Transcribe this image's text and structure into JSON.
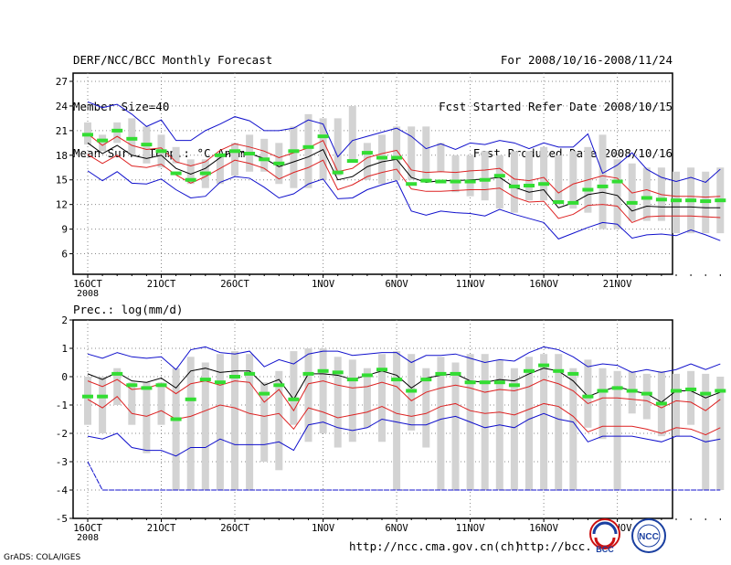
{
  "header": {
    "left": [
      "DERF/NCC/BCC Monthly Forecast",
      "Member Size=40",
      "Mean Surf. Temp.: °C Anom."
    ],
    "right": [
      "For 2008/10/16-2008/11/24",
      "Fcst Started Refer Date 2008/10/15",
      "Fcst Produced Date 2008/10/16"
    ]
  },
  "footer": {
    "url1": "http://ncc.cma.gov.cn(ch)",
    "url2": "http://bcc.",
    "grads": "GrADS: COLA/IGES",
    "logo1": "BCC",
    "logo2": "NCC"
  },
  "colors": {
    "box": "#d3d3d3",
    "median": "#33dd33",
    "mean": "#000000",
    "inner": "#dd2222",
    "outer": "#1010cc",
    "grid": "#888888"
  },
  "chart_data": [
    {
      "type": "box",
      "title": "Mean Surf. Temp.: °C Anom.",
      "ylim": [
        3.5,
        28
      ],
      "yticks": [
        6,
        9,
        12,
        15,
        18,
        21,
        24,
        27
      ],
      "xticks": [
        {
          "day": 1,
          "label": "16OCT"
        },
        {
          "day": 6,
          "label": "21OCT"
        },
        {
          "day": 11,
          "label": "26OCT"
        },
        {
          "day": 17,
          "label": "1NOV"
        },
        {
          "day": 22,
          "label": "6NOV"
        },
        {
          "day": 27,
          "label": "11NOV"
        },
        {
          "day": 32,
          "label": "16NOV"
        },
        {
          "day": 37,
          "label": "21NOV"
        }
      ],
      "year_label": "2008",
      "box_low": [
        19.3,
        18.5,
        19.5,
        18,
        17,
        16.5,
        17,
        14.5,
        14,
        14.5,
        15.5,
        16,
        16,
        14.5,
        14,
        14,
        15,
        15.5,
        17.5,
        15,
        14.5,
        15,
        15,
        15,
        16,
        13.5,
        13,
        12.5,
        11.5,
        11,
        12.5,
        12.5,
        12,
        11.5,
        11,
        9,
        9,
        10,
        10,
        10,
        8.5,
        8.5,
        8.5,
        8.5
      ],
      "box_high": [
        22,
        20.5,
        22,
        22.5,
        21.5,
        20.5,
        19,
        17.5,
        17.5,
        18,
        19.5,
        20.5,
        20,
        19.5,
        21.5,
        23,
        22.5,
        22.5,
        24,
        19.5,
        20.5,
        21.5,
        21.5,
        21.5,
        19.5,
        18,
        18,
        18.5,
        18,
        18.5,
        18.5,
        19,
        18,
        18.5,
        19,
        20.5,
        17.5,
        17,
        16.5,
        16.5,
        16,
        16.5,
        16,
        16.5
      ],
      "median": [
        20.5,
        19.8,
        21,
        20,
        19.3,
        18.5,
        15.8,
        15,
        15.8,
        18,
        18.5,
        18.2,
        17.5,
        17,
        18.5,
        19,
        20.3,
        15.9,
        17.3,
        18.3,
        17.7,
        17.7,
        14.5,
        14.9,
        14.8,
        14.8,
        14.8,
        15,
        15.5,
        14.2,
        14.3,
        14.5,
        12.3,
        12.2,
        13.8,
        14.2,
        14.8,
        12.2,
        12.8,
        12.6,
        12.5,
        12.5,
        12.4,
        12.5
      ],
      "outer_high": [
        24.5,
        23.8,
        24.2,
        23,
        21.5,
        22.3,
        19.8,
        19.8,
        21,
        21.8,
        22.7,
        22.2,
        21,
        21,
        21.3,
        22.3,
        21.8,
        17.8,
        19.8,
        20.3,
        20.8,
        21.3,
        20.3,
        18.8,
        19.4,
        18.7,
        19.5,
        19.3,
        19.8,
        19.5,
        18.8,
        19.5,
        19,
        19,
        20.6,
        15.8,
        16.8,
        18.3,
        16.3,
        15.3,
        14.8,
        15.3,
        14.7,
        16.3
      ],
      "red_high": [
        20.6,
        19.2,
        20.3,
        19.2,
        18.7,
        18.9,
        17.2,
        16.7,
        17.2,
        18.6,
        19.4,
        19,
        18.5,
        17.7,
        18.3,
        18.9,
        19.8,
        16,
        16.4,
        17.7,
        18.2,
        18.6,
        16.2,
        15.9,
        16,
        15.9,
        16.1,
        16.2,
        16.4,
        15.1,
        14.9,
        15.3,
        13.4,
        14.5,
        15,
        15.5,
        15.2,
        13.4,
        13.8,
        13.2,
        13,
        13,
        12.9,
        13
      ],
      "mean": [
        19.5,
        18.2,
        19.2,
        18,
        17.6,
        18,
        16.4,
        15.7,
        16.4,
        17.7,
        18.6,
        18.2,
        17.6,
        16.6,
        17.2,
        17.8,
        18.7,
        15,
        15.4,
        16.6,
        17.2,
        17.5,
        15.3,
        14.7,
        14.9,
        14.9,
        15,
        15.1,
        15.3,
        14.1,
        13.5,
        13.8,
        11.6,
        12.2,
        13.2,
        13.5,
        13.1,
        11.2,
        11.8,
        11.7,
        11.7,
        11.7,
        11.6,
        11.6
      ],
      "red_low": [
        18.1,
        17,
        18,
        16.7,
        16.5,
        16.9,
        15.6,
        14.6,
        15.4,
        16.4,
        17.4,
        17,
        16.4,
        15.1,
        15.9,
        16.5,
        17.4,
        13.8,
        14.4,
        15.4,
        15.9,
        16.3,
        13.9,
        13.6,
        13.6,
        13.7,
        13.8,
        13.8,
        14,
        12.9,
        12.3,
        12.4,
        10.3,
        10.8,
        11.9,
        12,
        11.8,
        9.8,
        10.5,
        10.6,
        10.6,
        10.6,
        10.5,
        10.4
      ],
      "outer_low": [
        16.1,
        14.9,
        16,
        14.6,
        14.5,
        15.1,
        13.8,
        12.8,
        13,
        14.7,
        15.4,
        15.2,
        14.1,
        12.8,
        13.3,
        14.5,
        15.1,
        12.7,
        12.8,
        13.8,
        14.4,
        14.9,
        11.2,
        10.7,
        11.2,
        11,
        10.9,
        10.6,
        11.4,
        10.8,
        10.3,
        9.8,
        7.8,
        8.5,
        9.2,
        9.8,
        9.6,
        7.9,
        8.3,
        8.4,
        8.2,
        8.9,
        8.3,
        7.6
      ]
    },
    {
      "type": "box",
      "title": "Prec.: log(mm/d)",
      "ylim": [
        -5,
        2
      ],
      "yticks": [
        -5,
        -4,
        -3,
        -2,
        -1,
        0,
        1,
        2
      ],
      "xticks": [
        {
          "day": 1,
          "label": "16OCT"
        },
        {
          "day": 6,
          "label": "21OCT"
        },
        {
          "day": 11,
          "label": "26OCT"
        },
        {
          "day": 17,
          "label": "1NOV"
        },
        {
          "day": 22,
          "label": "6NOV"
        },
        {
          "day": 27,
          "label": "11NOV"
        },
        {
          "day": 32,
          "label": "16NOV"
        },
        {
          "day": 37,
          "label": "21NOV"
        }
      ],
      "year_label": "2008",
      "box_low": [
        -1.7,
        -2,
        -1,
        -1.7,
        -2.7,
        -1.7,
        -4,
        -4,
        -4,
        -4,
        -4,
        -4,
        -3,
        -3.3,
        -1.7,
        -2.3,
        -2,
        -2.5,
        -2.3,
        -1.8,
        -2.3,
        -4,
        -1.9,
        -2.5,
        -4,
        -4,
        -4,
        -4,
        -4,
        -4,
        -4,
        -4,
        -4,
        -4,
        -1.8,
        -2.2,
        -4,
        -1.3,
        -1.5,
        -2.1,
        -2.1,
        -1.7,
        -4,
        -4
      ],
      "box_high": [
        0,
        0,
        0.3,
        -0.2,
        -0.2,
        -0.2,
        0.3,
        0.7,
        0.5,
        0.8,
        0.9,
        0.8,
        -0.2,
        0.2,
        0.9,
        1,
        1,
        0.7,
        0.6,
        0.3,
        0.8,
        0.9,
        0.8,
        0.3,
        0.7,
        0.5,
        0.8,
        0.8,
        0.6,
        0.3,
        0.7,
        0.8,
        0.8,
        0.3,
        0.6,
        0.3,
        0.2,
        0.2,
        0.1,
        0.2,
        0.1,
        0.2,
        0.1,
        0
      ],
      "median": [
        -0.7,
        -0.7,
        0.1,
        -0.3,
        -0.4,
        -0.3,
        -1.5,
        -0.8,
        -0.1,
        -0.2,
        0,
        0.1,
        -0.6,
        -0.3,
        -0.8,
        0.1,
        0.2,
        0.15,
        -0.1,
        0.05,
        0.25,
        -0.1,
        -0.5,
        -0.1,
        0.1,
        0.1,
        -0.2,
        -0.2,
        -0.2,
        -0.3,
        0.2,
        0.4,
        0.2,
        0.1,
        -0.7,
        -0.5,
        -0.4,
        -0.5,
        -0.6,
        -0.95,
        -0.5,
        -0.45,
        -0.6,
        -0.5
      ],
      "outer_high": [
        0.8,
        0.65,
        0.85,
        0.7,
        0.65,
        0.7,
        0.25,
        0.95,
        1.05,
        0.85,
        0.8,
        0.9,
        0.35,
        0.6,
        0.45,
        0.8,
        0.9,
        0.9,
        0.75,
        0.8,
        0.85,
        0.85,
        0.5,
        0.75,
        0.75,
        0.8,
        0.65,
        0.5,
        0.6,
        0.55,
        0.85,
        1.05,
        0.95,
        0.7,
        0.35,
        0.45,
        0.4,
        0.15,
        0.25,
        0.15,
        0.25,
        0.45,
        0.25,
        0.45
      ],
      "red_high": [
        -0.15,
        -0.35,
        -0.1,
        -0.45,
        -0.4,
        -0.25,
        -0.6,
        -0.25,
        -0.15,
        -0.3,
        -0.15,
        -0.2,
        -0.9,
        -0.45,
        -1.2,
        -0.25,
        -0.15,
        -0.3,
        -0.4,
        -0.35,
        -0.2,
        -0.35,
        -0.85,
        -0.55,
        -0.4,
        -0.3,
        -0.4,
        -0.55,
        -0.45,
        -0.5,
        -0.35,
        -0.1,
        -0.25,
        -0.5,
        -0.95,
        -0.75,
        -0.75,
        -0.8,
        -0.85,
        -1.1,
        -0.85,
        -0.9,
        -1.2,
        -0.8
      ],
      "mean": [
        0.1,
        -0.1,
        0.15,
        -0.15,
        -0.2,
        -0.05,
        -0.4,
        0.2,
        0.3,
        0.15,
        0.2,
        0.2,
        -0.3,
        -0.1,
        -0.8,
        0.1,
        0.1,
        0.05,
        -0.1,
        0.05,
        0.2,
        0.05,
        -0.4,
        -0.05,
        0.05,
        0.1,
        -0.15,
        -0.2,
        -0.1,
        -0.15,
        0.1,
        0.3,
        0.2,
        -0.15,
        -0.7,
        -0.5,
        -0.35,
        -0.5,
        -0.6,
        -0.9,
        -0.5,
        -0.5,
        -0.75,
        -0.55
      ],
      "red_low": [
        -0.8,
        -1.1,
        -0.7,
        -1.3,
        -1.4,
        -1.2,
        -1.5,
        -1.4,
        -1.2,
        -1,
        -1.1,
        -1.3,
        -1.4,
        -1.3,
        -1.85,
        -1.1,
        -1.25,
        -1.45,
        -1.35,
        -1.25,
        -1.05,
        -1.3,
        -1.4,
        -1.3,
        -1.05,
        -0.95,
        -1.2,
        -1.3,
        -1.25,
        -1.35,
        -1.15,
        -0.95,
        -1.05,
        -1.4,
        -1.95,
        -1.75,
        -1.75,
        -1.75,
        -1.85,
        -2,
        -1.8,
        -1.85,
        -2.05,
        -1.8
      ],
      "outer_low": [
        -2.1,
        -2.2,
        -2,
        -2.5,
        -2.6,
        -2.6,
        -2.8,
        -2.5,
        -2.5,
        -2.2,
        -2.4,
        -2.4,
        -2.4,
        -2.3,
        -2.6,
        -1.7,
        -1.6,
        -1.8,
        -1.9,
        -1.8,
        -1.5,
        -1.6,
        -1.7,
        -1.7,
        -1.5,
        -1.4,
        -1.6,
        -1.8,
        -1.7,
        -1.8,
        -1.5,
        -1.3,
        -1.5,
        -1.6,
        -2.3,
        -2.1,
        -2.1,
        -2.1,
        -2.2,
        -2.3,
        -2.1,
        -2.1,
        -2.3,
        -2.2
      ],
      "lower_bound": [
        -3,
        -4,
        -4,
        -4,
        -4,
        -4,
        -4,
        -4,
        -4,
        -4,
        -4,
        -4,
        -4,
        -4,
        -4,
        -4,
        -4,
        -4,
        -4,
        -4,
        -4,
        -4,
        -4,
        -4,
        -4,
        -4,
        -4,
        -4,
        -4,
        -4,
        -4,
        -4,
        -4,
        -4,
        -4,
        -4,
        -4,
        -4,
        -4,
        -4,
        -4,
        -4,
        -4,
        -4
      ]
    }
  ]
}
